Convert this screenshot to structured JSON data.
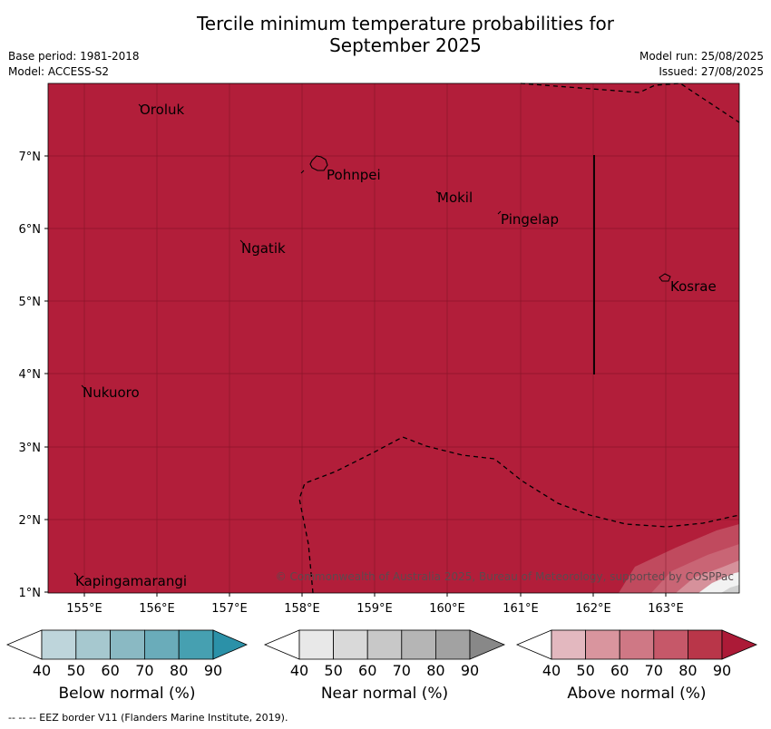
{
  "title": {
    "line1": "Tercile minimum temperature probabilities for",
    "line2": "September 2025"
  },
  "meta": {
    "base_period": "Base period: 1981-2018",
    "model": "Model: ACCESS-S2",
    "model_run": "Model run: 25/08/2025",
    "issued": "Issued: 27/08/2025"
  },
  "map": {
    "fill_color": "#b21e3a",
    "lon_labels": [
      "155°E",
      "156°E",
      "157°E",
      "158°E",
      "159°E",
      "160°E",
      "161°E",
      "162°E",
      "163°E"
    ],
    "lat_labels": [
      "1°N",
      "2°N",
      "3°N",
      "4°N",
      "5°N",
      "6°N",
      "7°N"
    ],
    "places": [
      {
        "name": "Oroluk"
      },
      {
        "name": "Pohnpei"
      },
      {
        "name": "Mokil"
      },
      {
        "name": "Pingelap"
      },
      {
        "name": "Ngatik"
      },
      {
        "name": "Kosrae"
      },
      {
        "name": "Nukuoro"
      },
      {
        "name": "Kapingamarangi"
      }
    ],
    "copyright": "© Commonwealth of Australia 2025, Bureau of Meteorology, supported by COSPPac"
  },
  "colorbars": [
    {
      "label": "Below normal (%)",
      "colors": [
        "#ffffff",
        "#bed5db",
        "#a6c8cf",
        "#8ab9c3",
        "#6aacba",
        "#46a0b1",
        "#2b91a8"
      ]
    },
    {
      "label": "Near normal (%)",
      "colors": [
        "#ffffff",
        "#e8e8e8",
        "#d9d9d9",
        "#c8c8c8",
        "#b5b5b5",
        "#a2a2a2",
        "#888888"
      ]
    },
    {
      "label": "Above normal (%)",
      "colors": [
        "#ffffff",
        "#e3b8bf",
        "#d9959e",
        "#cf7885",
        "#c65869",
        "#b93649",
        "#ac1a37"
      ]
    }
  ],
  "colorbar_ticks": [
    "40",
    "50",
    "60",
    "70",
    "80",
    "90"
  ],
  "footer": "--  --  -- EEZ border V11 (Flanders Marine Institute, 2019)."
}
